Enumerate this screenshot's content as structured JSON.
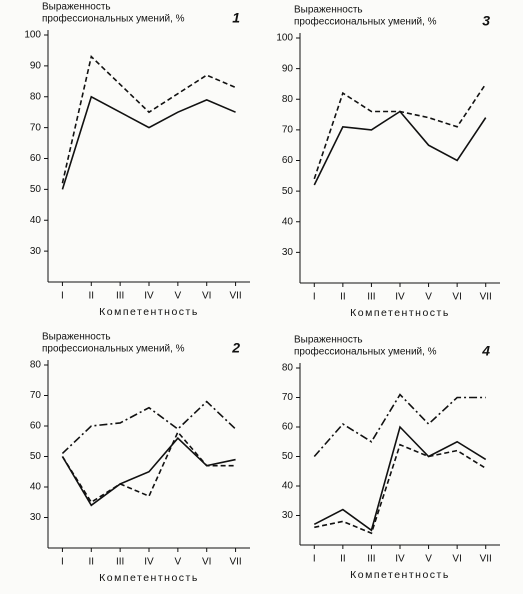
{
  "chart_data": [
    {
      "type": "line",
      "panel_label": "1",
      "ylabel": [
        "Выраженность",
        "профессиональных умений, %"
      ],
      "xlabel": "Компетентность",
      "categories": [
        "I",
        "II",
        "III",
        "IV",
        "V",
        "VI",
        "VII"
      ],
      "ylim": [
        20,
        100
      ],
      "yticks": [
        30,
        40,
        50,
        60,
        70,
        80,
        90,
        100
      ],
      "series": [
        {
          "color": "#111111",
          "dash": "solid",
          "values": [
            50,
            80,
            75,
            70,
            75,
            79,
            75
          ]
        },
        {
          "color": "#111111",
          "dash": "dashed",
          "values": [
            52,
            93,
            84,
            75,
            81,
            87,
            83
          ]
        }
      ]
    },
    {
      "type": "line",
      "panel_label": "3",
      "ylabel": [
        "Выраженность",
        "профессиональных умений, %"
      ],
      "xlabel": "Компетентность",
      "categories": [
        "I",
        "II",
        "III",
        "IV",
        "V",
        "VI",
        "VII"
      ],
      "ylim": [
        20,
        100
      ],
      "yticks": [
        30,
        40,
        50,
        60,
        70,
        80,
        90,
        100
      ],
      "series": [
        {
          "color": "#111111",
          "dash": "solid",
          "values": [
            52,
            71,
            70,
            76,
            65,
            60,
            74
          ]
        },
        {
          "color": "#111111",
          "dash": "dashed",
          "values": [
            54,
            82,
            76,
            76,
            74,
            71,
            85
          ]
        }
      ]
    },
    {
      "type": "line",
      "panel_label": "2",
      "ylabel": [
        "Выраженность",
        "профессиональных умений, %"
      ],
      "xlabel": "Компетентность",
      "categories": [
        "I",
        "II",
        "III",
        "IV",
        "V",
        "VI",
        "VII"
      ],
      "ylim": [
        20,
        80
      ],
      "yticks": [
        30,
        40,
        50,
        60,
        70,
        80
      ],
      "series": [
        {
          "color": "#111111",
          "dash": "solid",
          "values": [
            50,
            34,
            41,
            45,
            56,
            47,
            49
          ]
        },
        {
          "color": "#111111",
          "dash": "dashed",
          "values": [
            50,
            35,
            41,
            37,
            58,
            47,
            47
          ]
        },
        {
          "color": "#111111",
          "dash": "dashdot",
          "values": [
            51,
            60,
            61,
            66,
            59,
            68,
            59
          ]
        }
      ]
    },
    {
      "type": "line",
      "panel_label": "4",
      "ylabel": [
        "Выраженность",
        "профессиональных умений, %"
      ],
      "xlabel": "Компетентность",
      "categories": [
        "I",
        "II",
        "III",
        "IV",
        "V",
        "VI",
        "VII"
      ],
      "ylim": [
        20,
        80
      ],
      "yticks": [
        30,
        40,
        50,
        60,
        70,
        80
      ],
      "series": [
        {
          "color": "#111111",
          "dash": "solid",
          "values": [
            27,
            32,
            25,
            60,
            50,
            55,
            49
          ]
        },
        {
          "color": "#111111",
          "dash": "dashed",
          "values": [
            26,
            28,
            24,
            54,
            50,
            52,
            46
          ]
        },
        {
          "color": "#111111",
          "dash": "dashdot",
          "values": [
            50,
            61,
            55,
            71,
            61,
            70,
            70
          ]
        }
      ]
    }
  ]
}
